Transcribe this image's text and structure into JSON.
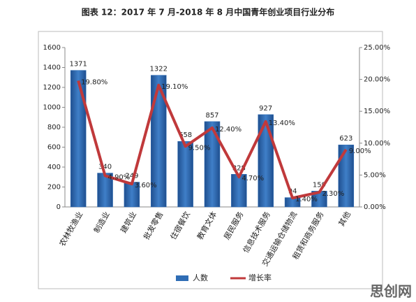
{
  "chart_data": {
    "type": "bar",
    "title": "图表 12：2017 年 7 月-2018 年 8 月中国青年创业项目行业分布",
    "categories": [
      "农林牧渔业",
      "制造业",
      "建筑业",
      "批发零售",
      "住宿餐饮",
      "教育文体",
      "居民服务",
      "信息技术服务",
      "交通运输仓储物流",
      "租赁和商务服务",
      "其他"
    ],
    "series": [
      {
        "name": "人数",
        "type": "bar",
        "color": "#2f6db5",
        "values": [
          1371,
          340,
          249,
          1322,
          658,
          857,
          328,
          927,
          94,
          159,
          623
        ]
      },
      {
        "name": "增长率",
        "type": "line",
        "axis": "y2",
        "color": "#c0393b",
        "values": [
          19.8,
          4.9,
          3.6,
          19.1,
          9.5,
          12.4,
          4.7,
          13.4,
          1.4,
          2.3,
          9.0
        ],
        "value_labels": [
          "19.80%",
          "4.90%",
          "3.60%",
          "19.10%",
          "9.50%",
          "12.40%",
          "4.70%",
          "13.40%",
          "1.40%",
          "2.30%",
          "9.00%"
        ]
      }
    ],
    "ylim": [
      0,
      1600
    ],
    "yticks": [
      0,
      200,
      400,
      600,
      800,
      1000,
      1200,
      1400,
      1600
    ],
    "y2lim": [
      0,
      25
    ],
    "y2ticks": [
      {
        "value": 0,
        "label": "0.00%"
      },
      {
        "value": 5,
        "label": "5.00%"
      },
      {
        "value": 10,
        "label": "10.00%"
      },
      {
        "value": 15,
        "label": "15.00%"
      },
      {
        "value": 20,
        "label": "20.00%"
      },
      {
        "value": 25,
        "label": "25.00%"
      }
    ],
    "legend": "bottom",
    "watermark": "思创网"
  }
}
